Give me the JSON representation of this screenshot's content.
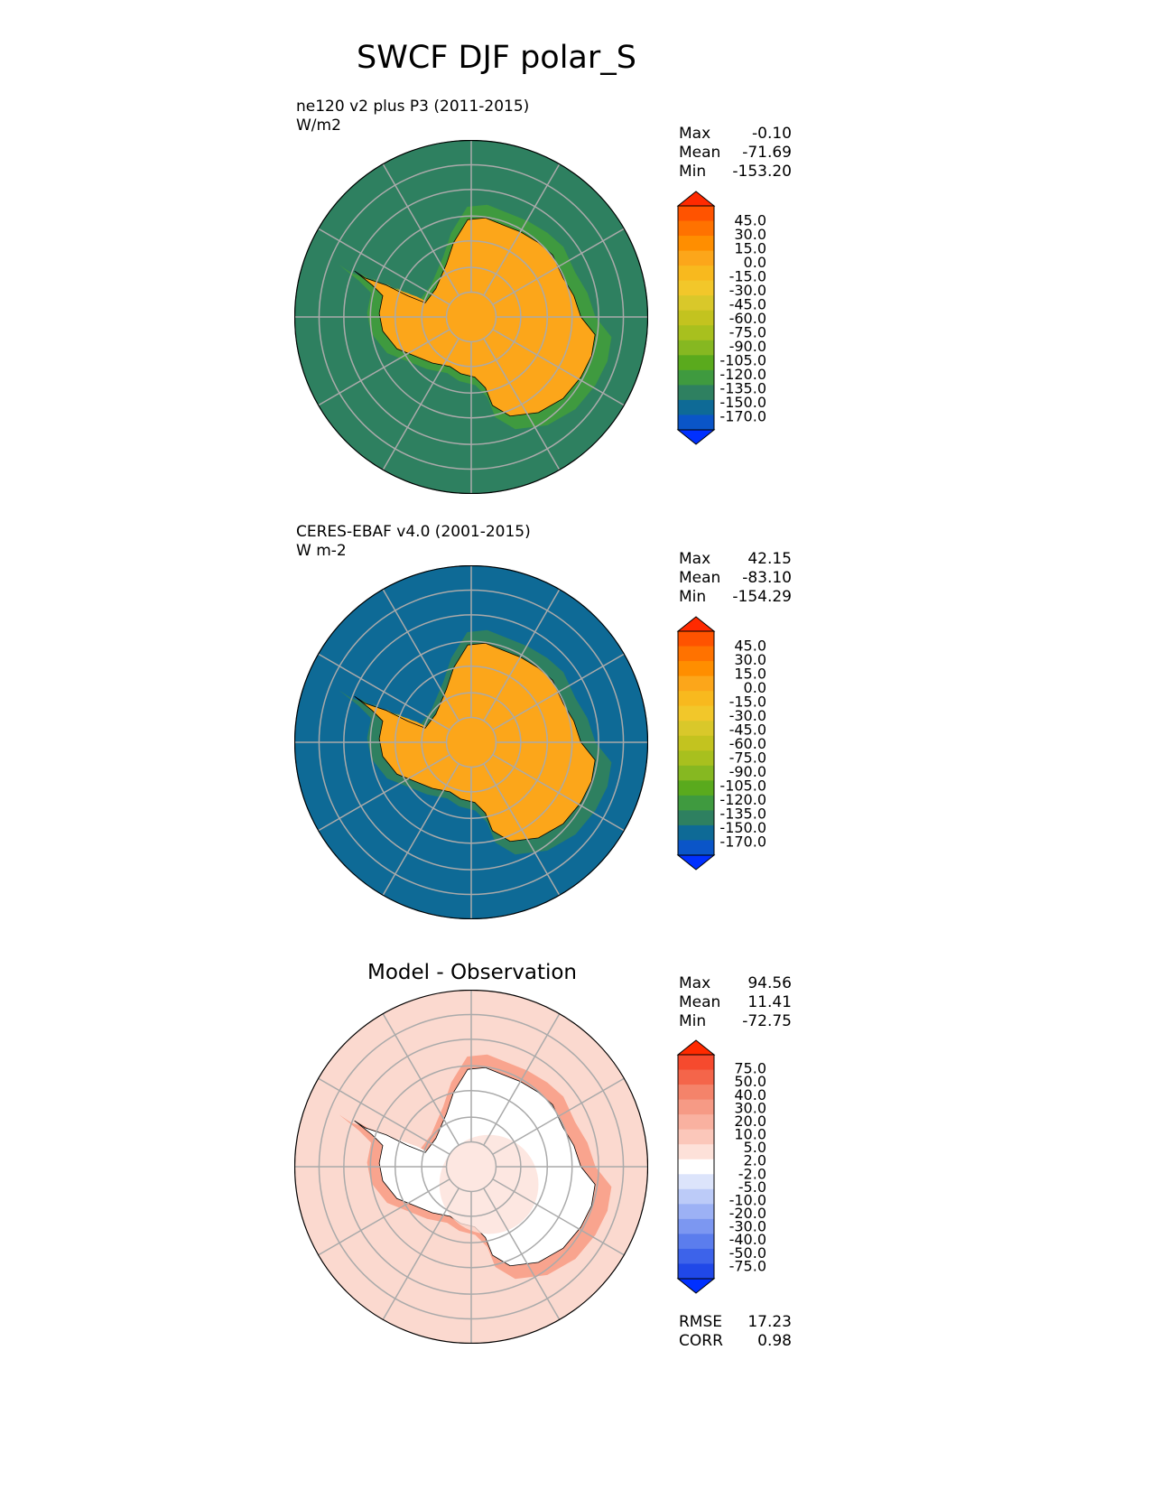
{
  "figure": {
    "title": "SWCF DJF polar_S"
  },
  "panels": [
    {
      "title_line1": "ne120 v2 plus P3 (2011-2015)",
      "title_line2": "W/m2",
      "stats": [
        {
          "label": "Max",
          "value": "-0.10"
        },
        {
          "label": "Mean",
          "value": "-71.69"
        },
        {
          "label": "Min",
          "value": "-153.20"
        }
      ],
      "ocean_color": "#3f9a3f",
      "ring_colors": [
        "#2e8060",
        "#3f9a3f",
        "#62ae2a",
        "#a8c01e",
        "#f2c72a",
        "#fca61a"
      ]
    },
    {
      "title_line1": "CERES-EBAF v4.0 (2001-2015)",
      "title_line2": "W m-2",
      "stats": [
        {
          "label": "Max",
          "value": "42.15"
        },
        {
          "label": "Mean",
          "value": "-83.10"
        },
        {
          "label": "Min",
          "value": "-154.29"
        }
      ],
      "ocean_color": "#2e8060",
      "ring_colors": [
        "#0e6a96",
        "#2e8060",
        "#3f9a3f",
        "#a8c01e",
        "#f2c72a",
        "#fca61a"
      ]
    },
    {
      "center_title": "Model - Observation",
      "stats": [
        {
          "label": "Max",
          "value": "94.56"
        },
        {
          "label": "Mean",
          "value": "11.41"
        },
        {
          "label": "Min",
          "value": "-72.75"
        }
      ],
      "extra_stats": [
        {
          "label": "RMSE",
          "value": "17.23"
        },
        {
          "label": "CORR",
          "value": "0.98"
        }
      ],
      "ocean_color": "#f9c2b2",
      "ring_colors": [
        "#fbd9cf",
        "#f9a48e",
        "#f4836a",
        "#fbd9cf",
        "#fdeee9",
        "#ffffff"
      ]
    }
  ],
  "colorbars": {
    "field": {
      "labels": [
        "45.0",
        "30.0",
        "15.0",
        "0.0",
        "-15.0",
        "-30.0",
        "-45.0",
        "-60.0",
        "-75.0",
        "-90.0",
        "-105.0",
        "-120.0",
        "-135.0",
        "-150.0",
        "-170.0"
      ],
      "colors": [
        "#ff2a00",
        "#ff5300",
        "#ff7200",
        "#ff8e00",
        "#fca61a",
        "#f8b91e",
        "#f2c72a",
        "#d9c82a",
        "#c3c31f",
        "#a8c01e",
        "#86b821",
        "#5aaa1d",
        "#3f9a3f",
        "#2e8060",
        "#0e6a96",
        "#0a55c8",
        "#0030ff"
      ]
    },
    "diff": {
      "labels": [
        "75.0",
        "50.0",
        "40.0",
        "30.0",
        "20.0",
        "10.0",
        "5.0",
        "2.0",
        "-2.0",
        "-5.0",
        "-10.0",
        "-20.0",
        "-30.0",
        "-40.0",
        "-50.0",
        "-75.0"
      ],
      "colors": [
        "#ff2a00",
        "#f64a2e",
        "#f4654a",
        "#f4836a",
        "#f69a85",
        "#f9b1a0",
        "#fbc7ba",
        "#fde1d9",
        "#ffffff",
        "#dce4fb",
        "#bccbf8",
        "#9cb1f5",
        "#7c97f1",
        "#5b7ded",
        "#3d63ea",
        "#2048e8",
        "#0030ff"
      ]
    }
  },
  "chart_data": [
    {
      "type": "heatmap",
      "title": "ne120 v2 plus P3 (2011-2015)",
      "units": "W/m2",
      "projection": "south polar stereographic",
      "max": -0.1,
      "mean": -71.69,
      "min": -153.2,
      "levels": [
        -170,
        -150,
        -135,
        -120,
        -105,
        -90,
        -75,
        -60,
        -45,
        -30,
        -15,
        0,
        15,
        30,
        45
      ]
    },
    {
      "type": "heatmap",
      "title": "CERES-EBAF v4.0 (2001-2015)",
      "units": "W m-2",
      "projection": "south polar stereographic",
      "max": 42.15,
      "mean": -83.1,
      "min": -154.29,
      "levels": [
        -170,
        -150,
        -135,
        -120,
        -105,
        -90,
        -75,
        -60,
        -45,
        -30,
        -15,
        0,
        15,
        30,
        45
      ]
    },
    {
      "type": "heatmap",
      "title": "Model - Observation",
      "projection": "south polar stereographic",
      "max": 94.56,
      "mean": 11.41,
      "min": -72.75,
      "rmse": 17.23,
      "corr": 0.98,
      "levels": [
        -75,
        -50,
        -40,
        -30,
        -20,
        -10,
        -5,
        -2,
        2,
        5,
        10,
        20,
        30,
        40,
        50,
        75
      ]
    }
  ]
}
